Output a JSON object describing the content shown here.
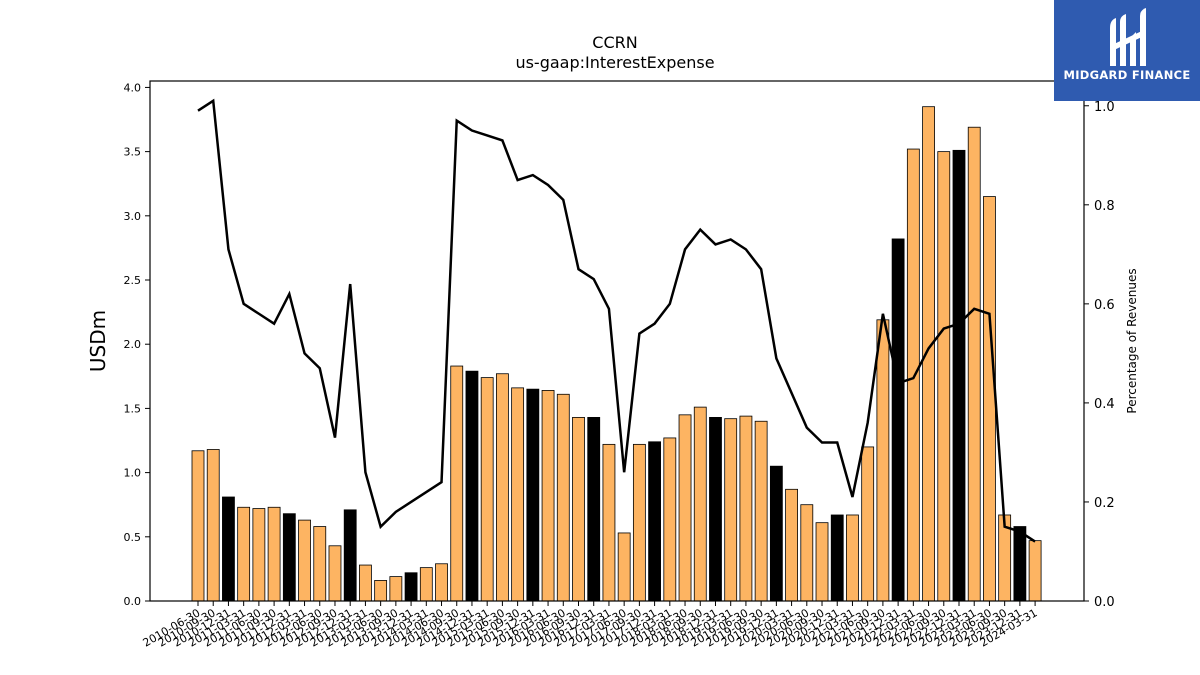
{
  "logo": {
    "text": "MIDGARD FINANCE"
  },
  "chart_data": {
    "type": "bar",
    "title": "CCRN",
    "subtitle": "us-gaap:InterestExpense",
    "ylabel": "USDm",
    "y2label": "Percentage of Revenues",
    "ylim": [
      0,
      4.05
    ],
    "y2lim": [
      0,
      1.05
    ],
    "yticks": [
      0.0,
      0.5,
      1.0,
      1.5,
      2.0,
      2.5,
      3.0,
      3.5,
      4.0
    ],
    "y2ticks": [
      0.0,
      0.2,
      0.4,
      0.6,
      0.8,
      1.0
    ],
    "colors": {
      "bar": "#fdb462",
      "bar_q4": "#000000",
      "line": "#000000"
    },
    "categories": [
      "2010-06-30",
      "2010-09-30",
      "2010-12-31",
      "2011-03-31",
      "2011-06-30",
      "2011-09-30",
      "2011-12-31",
      "2012-03-31",
      "2012-06-30",
      "2012-09-30",
      "2012-12-31",
      "2013-03-31",
      "2013-06-30",
      "2013-09-30",
      "2013-12-31",
      "2014-03-31",
      "2014-06-30",
      "2014-09-30",
      "2014-12-31",
      "2015-03-31",
      "2015-06-30",
      "2015-09-30",
      "2015-12-31",
      "2016-03-31",
      "2016-06-30",
      "2016-09-30",
      "2016-12-31",
      "2017-03-31",
      "2017-06-30",
      "2017-09-30",
      "2017-12-31",
      "2018-03-31",
      "2018-06-30",
      "2018-09-30",
      "2018-12-31",
      "2019-03-31",
      "2019-06-30",
      "2019-09-30",
      "2019-12-31",
      "2020-03-31",
      "2020-06-30",
      "2020-09-30",
      "2020-12-31",
      "2021-03-31",
      "2021-06-30",
      "2021-09-30",
      "2021-12-31",
      "2022-03-31",
      "2022-06-30",
      "2022-09-30",
      "2022-12-31",
      "2023-03-31",
      "2023-06-30",
      "2023-09-30",
      "2023-12-31",
      "2024-03-31"
    ],
    "values": [
      1.17,
      1.18,
      0.81,
      0.73,
      0.72,
      0.73,
      0.68,
      0.63,
      0.58,
      0.43,
      0.71,
      0.28,
      0.16,
      0.19,
      0.22,
      0.26,
      0.29,
      1.83,
      1.79,
      1.74,
      1.77,
      1.66,
      1.65,
      1.64,
      1.61,
      1.43,
      1.43,
      1.22,
      0.53,
      1.22,
      1.24,
      1.27,
      1.45,
      1.51,
      1.43,
      1.42,
      1.44,
      1.4,
      1.05,
      0.87,
      0.75,
      0.61,
      0.67,
      0.67,
      1.2,
      2.19,
      2.82,
      3.52,
      3.85,
      3.5,
      3.51,
      3.69,
      3.15,
      0.67,
      0.58,
      0.47
    ],
    "q4": [
      false,
      false,
      true,
      false,
      false,
      false,
      true,
      false,
      false,
      false,
      true,
      false,
      false,
      false,
      true,
      false,
      false,
      false,
      true,
      false,
      false,
      false,
      true,
      false,
      false,
      false,
      true,
      false,
      false,
      false,
      true,
      false,
      false,
      false,
      true,
      false,
      false,
      false,
      true,
      false,
      false,
      false,
      true,
      false,
      false,
      false,
      true,
      false,
      false,
      false,
      true,
      false,
      false,
      false,
      true,
      false
    ],
    "line_values": [
      0.99,
      1.01,
      0.71,
      0.6,
      0.58,
      0.56,
      0.62,
      0.5,
      0.47,
      0.33,
      0.64,
      0.26,
      0.15,
      0.18,
      0.2,
      0.22,
      0.24,
      0.97,
      0.95,
      0.94,
      0.93,
      0.85,
      0.86,
      0.84,
      0.81,
      0.67,
      0.65,
      0.59,
      0.26,
      0.54,
      0.56,
      0.6,
      0.71,
      0.75,
      0.72,
      0.73,
      0.71,
      0.67,
      0.49,
      0.42,
      0.35,
      0.32,
      0.32,
      0.21,
      0.36,
      0.58,
      0.44,
      0.45,
      0.51,
      0.55,
      0.56,
      0.59,
      0.58,
      0.15,
      0.14,
      0.12
    ],
    "grid": false,
    "legend": "none"
  }
}
